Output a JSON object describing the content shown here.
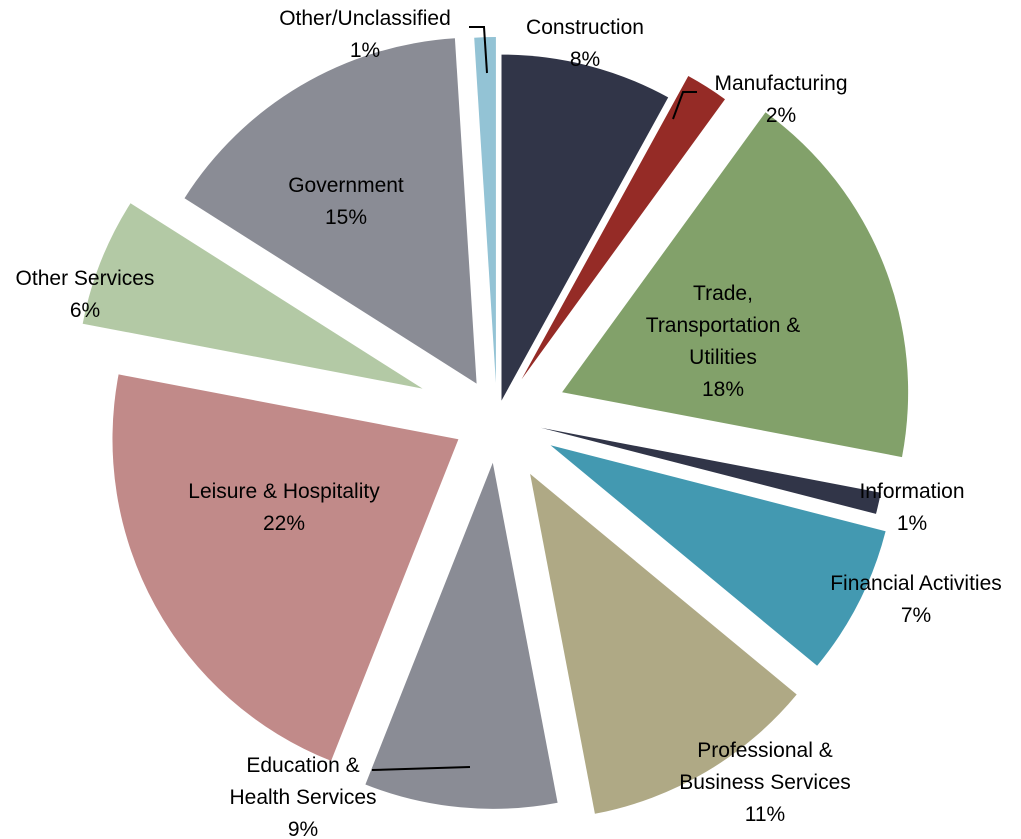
{
  "chart_data": {
    "type": "pie",
    "title": "",
    "exploded": true,
    "start_angle_deg": 0,
    "direction": "clockwise",
    "slices": [
      {
        "label": "Construction",
        "value_label": "8%",
        "value": 8,
        "color": "#313548"
      },
      {
        "label": "Manufacturing",
        "value_label": "2%",
        "value": 2,
        "color": "#952b26"
      },
      {
        "label": "Trade, Transportation & Utilities",
        "label_lines": [
          "Trade,",
          "Transportation &",
          "Utilities"
        ],
        "value_label": "18%",
        "value": 18,
        "color": "#82a16a"
      },
      {
        "label": "Information",
        "value_label": "1%",
        "value": 1,
        "color": "#313548"
      },
      {
        "label": "Financial Activities",
        "value_label": "7%",
        "value": 7,
        "color": "#4399b1"
      },
      {
        "label": "Professional & Business Services",
        "label_lines": [
          "Professional &",
          "Business Services"
        ],
        "value_label": "11%",
        "value": 11,
        "color": "#afa985"
      },
      {
        "label": "Education & Health Services",
        "label_lines": [
          "Education &",
          "Health Services"
        ],
        "value_label": "9%",
        "value": 9,
        "color": "#8a8c95"
      },
      {
        "label": "Leisure & Hospitality",
        "value_label": "22%",
        "value": 22,
        "color": "#c18a89"
      },
      {
        "label": "Other Services",
        "value_label": "6%",
        "value": 6,
        "color": "#b3c9a5"
      },
      {
        "label": "Government",
        "value_label": "15%",
        "value": 15,
        "color": "#8a8c95"
      },
      {
        "label": "Other/Unclassified",
        "value_label": "1%",
        "value": 1,
        "color": "#93c3d5"
      }
    ]
  }
}
